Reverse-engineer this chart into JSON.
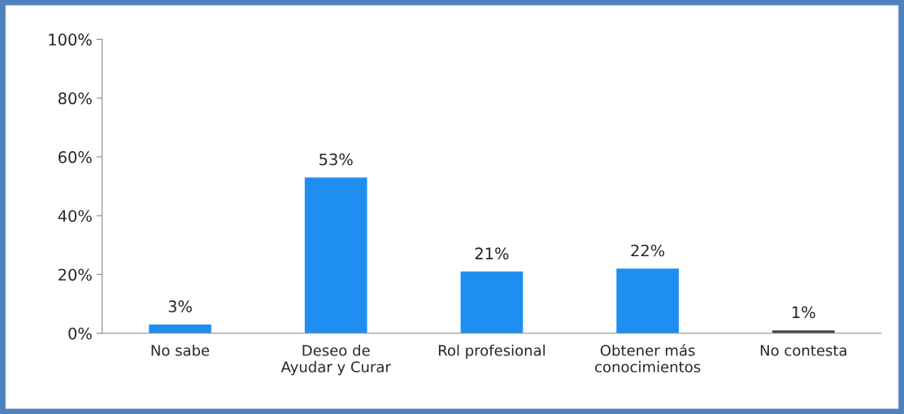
{
  "chart_data": {
    "type": "bar",
    "categories": [
      "No sabe",
      "Deseo de\nAyudar y Curar",
      "Rol profesional",
      "Obtener más\nconocimientos",
      "No contesta"
    ],
    "values": [
      3,
      53,
      21,
      22,
      1
    ],
    "value_labels": [
      "3%",
      "53%",
      "21%",
      "22%",
      "1%"
    ],
    "colors": [
      "#1e8ff0",
      "#1e8ff0",
      "#1e8ff0",
      "#1e8ff0",
      "#454545"
    ],
    "ylim": [
      0,
      100
    ],
    "yticks": [
      {
        "value": 0,
        "label": "0%"
      },
      {
        "value": 20,
        "label": "20%"
      },
      {
        "value": 40,
        "label": "40%"
      },
      {
        "value": 60,
        "label": "60%"
      },
      {
        "value": 80,
        "label": "80%"
      },
      {
        "value": 100,
        "label": "100%"
      }
    ],
    "grid": false,
    "legend": false
  }
}
